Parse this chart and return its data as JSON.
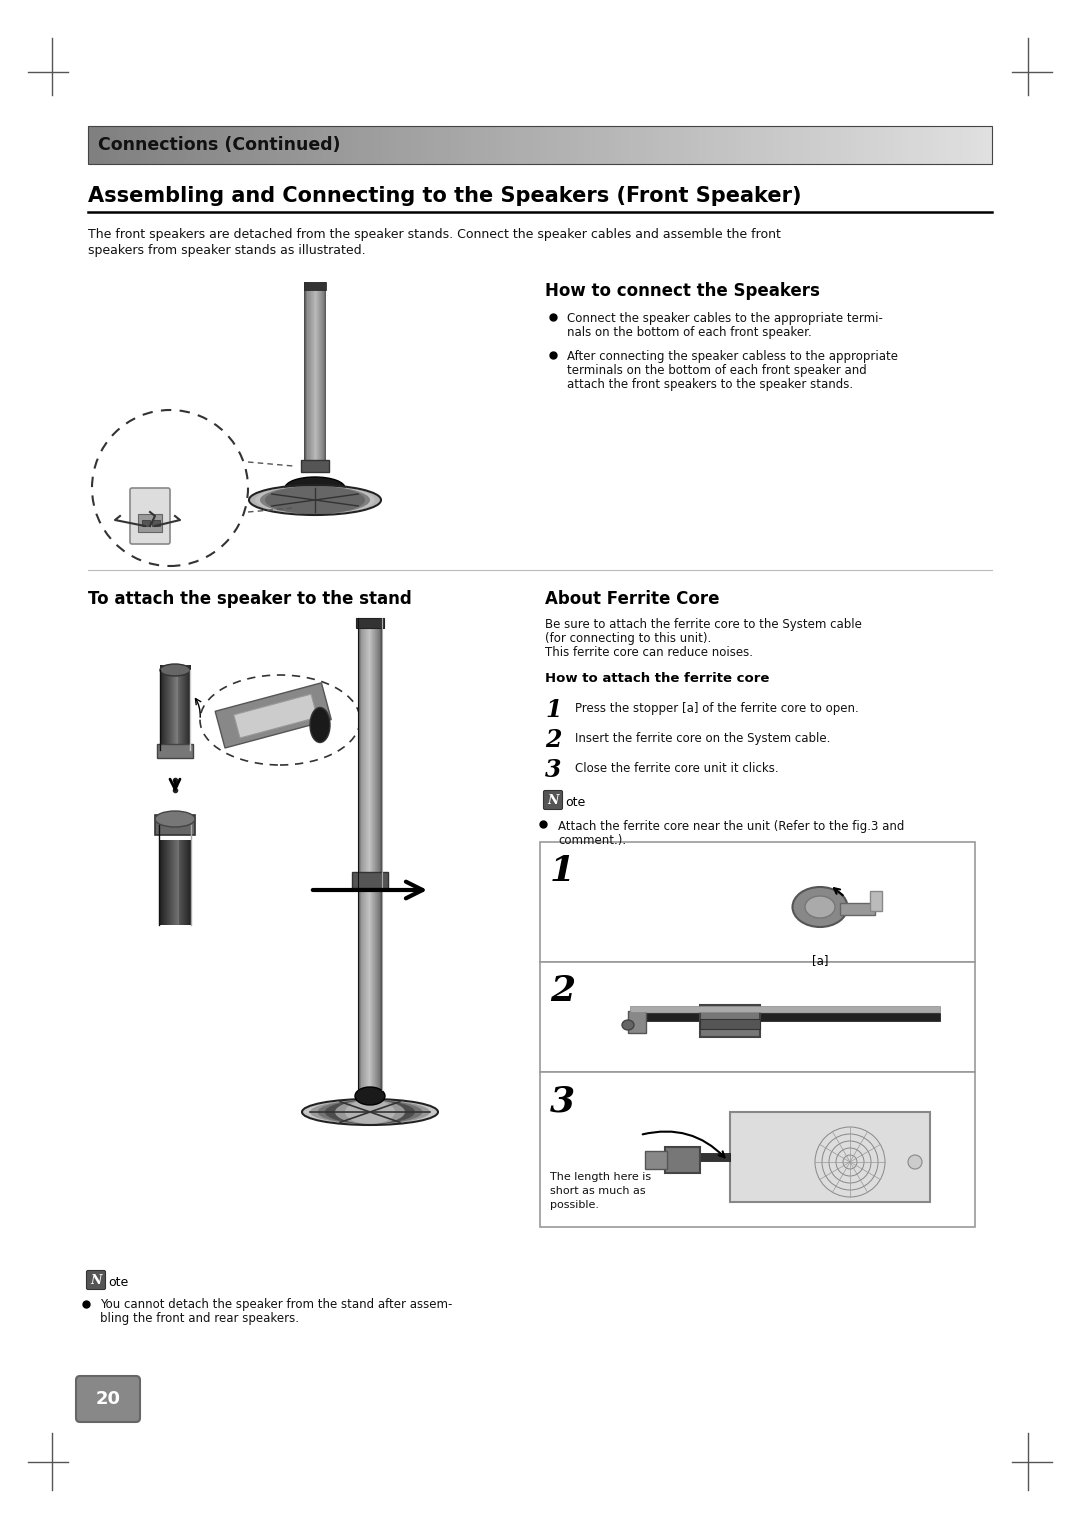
{
  "page_bg": "#ffffff",
  "header_text": "Connections (Continued)",
  "section_title": "Assembling and Connecting to the Speakers (Front Speaker)",
  "section_intro_1": "The front speakers are detached from the speaker stands. Connect the speaker cables and assemble the front",
  "section_intro_2": "speakers from speaker stands as illustrated.",
  "how_connect_title": "How to connect the Speakers",
  "bullet1_line1": "Connect the speaker cables to the appropriate termi-",
  "bullet1_line2": "nals on the bottom of each front speaker.",
  "bullet2_line1": "After connecting the speaker cabless to the appropriate",
  "bullet2_line2": "terminals on the bottom of each front speaker and",
  "bullet2_line3": "attach the front speakers to the speaker stands.",
  "attach_stand_title": "To attach the speaker to the stand",
  "about_ferrite_title": "About Ferrite Core",
  "ferrite_line1": "Be sure to attach the ferrite core to the System cable",
  "ferrite_line2": "(for connecting to this unit).",
  "ferrite_line3": "This ferrite core can reduce noises.",
  "how_attach_title": "How to attach the ferrite core",
  "step1_text": "Press the stopper [a] of the ferrite core to open.",
  "step2_text": "Insert the ferrite core on the System cable.",
  "step3_text": "Close the ferrite core unit it clicks.",
  "note_ferrite_1": "Attach the ferrite core near the unit (Refer to the fig.3 and",
  "note_ferrite_2": "comment.).",
  "fig1_label": "[a]",
  "fig3_label1": "The length here is",
  "fig3_label2": "short as much as",
  "fig3_label3": "possible.",
  "note_stand_1": "You cannot detach the speaker from the stand after assem-",
  "note_stand_2": "bling the front and rear speakers.",
  "page_number": "20"
}
